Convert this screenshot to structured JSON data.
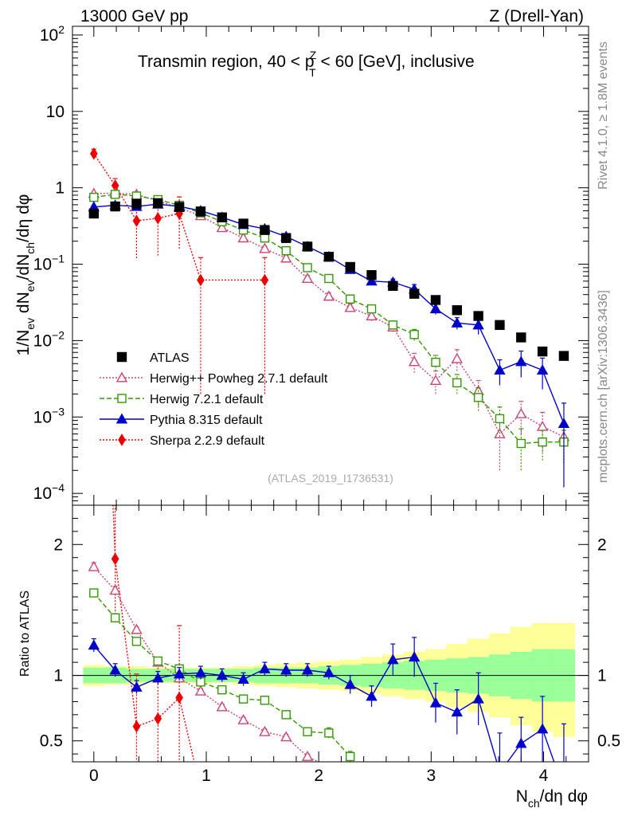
{
  "header": {
    "energy_label": "13000 GeV pp",
    "process_label": "Z (Drell-Yan)"
  },
  "side_text": {
    "rivet": "Rivet 4.1.0, ≥ 1.8M events",
    "site": "mcplots.cern.ch [arXiv:1306.3436]"
  },
  "colors": {
    "atlas": "#000000",
    "herwig_pp": "#cc4477",
    "herwig7": "#339900",
    "pythia": "#0000cc",
    "sherpa": "#ee0000",
    "band_inner": "#99ff99",
    "band_outer": "#ffff99"
  },
  "chart_data": [
    {
      "id": "main",
      "type": "scatter",
      "title_parts": {
        "lead": "Transmin region, 40 < p",
        "sup": "Z",
        "sub": "T",
        "tail": " < 60 [GeV], inclusive"
      },
      "ylabel": "1/N_ev dN_ev/dN_ch/dη dφ",
      "ylabel_parts": {
        "p1": "1/N",
        "s1": "ev",
        "p2": " dN",
        "s2": "ev",
        "p3": "/dN",
        "s3": "ch",
        "p4": "/dη dφ"
      },
      "yscale": "log",
      "ylim": [
        7e-05,
        130
      ],
      "xlim": [
        -0.19,
        4.4
      ],
      "yticks": [
        {
          "v": 0.0001,
          "base": "10",
          "exp": "−4"
        },
        {
          "v": 0.001,
          "base": "10",
          "exp": "−3"
        },
        {
          "v": 0.01,
          "base": "10",
          "exp": "−2"
        },
        {
          "v": 0.1,
          "base": "10",
          "exp": "−1"
        },
        {
          "v": 1,
          "base": "1",
          "exp": ""
        },
        {
          "v": 10,
          "base": "10",
          "exp": ""
        },
        {
          "v": 100,
          "base": "10",
          "exp": "2"
        }
      ],
      "watermark": "(ATLAS_2019_I1736531)",
      "legend": [
        {
          "key": "atlas",
          "label": "ATLAS"
        },
        {
          "key": "herwig_pp",
          "label": "Herwig++ Powheg 2.7.1 default"
        },
        {
          "key": "herwig7",
          "label": "Herwig 7.2.1 default"
        },
        {
          "key": "pythia",
          "label": "Pythia 8.315 default"
        },
        {
          "key": "sherpa",
          "label": "Sherpa 2.2.9 default"
        }
      ],
      "series": {
        "atlas": {
          "x": [
            0,
            0.19,
            0.38,
            0.57,
            0.76,
            0.95,
            1.14,
            1.33,
            1.52,
            1.71,
            1.9,
            2.09,
            2.28,
            2.47,
            2.66,
            2.85,
            3.04,
            3.23,
            3.42,
            3.61,
            3.8,
            3.99,
            4.18
          ],
          "y": [
            0.46,
            0.57,
            0.62,
            0.63,
            0.56,
            0.49,
            0.41,
            0.34,
            0.28,
            0.22,
            0.17,
            0.125,
            0.092,
            0.072,
            0.052,
            0.041,
            0.034,
            0.025,
            0.021,
            0.016,
            0.011,
            0.0072,
            0.0063
          ]
        },
        "herwig_pp": {
          "x": [
            0,
            0.19,
            0.38,
            0.57,
            0.76,
            0.95,
            1.14,
            1.33,
            1.52,
            1.71,
            1.9,
            2.09,
            2.28,
            2.47,
            2.66,
            2.85,
            3.04,
            3.23,
            3.42,
            3.61,
            3.8,
            3.99,
            4.18
          ],
          "y": [
            0.84,
            0.85,
            0.82,
            0.67,
            0.55,
            0.43,
            0.3,
            0.22,
            0.16,
            0.12,
            0.065,
            0.038,
            0.027,
            0.021,
            0.015,
            0.0053,
            0.003,
            0.0058,
            0.0022,
            0.0006,
            0.0011,
            0.00075,
            0.00055
          ],
          "err": [
            0.04,
            0.05,
            0.04,
            0.03,
            0.03,
            0.02,
            0.02,
            0.015,
            0.012,
            0.01,
            0.006,
            0.004,
            0.003,
            0.003,
            0.002,
            0.0015,
            0.001,
            0.0018,
            0.0008,
            0.0004,
            0.0005,
            0.0004,
            0.0003
          ]
        },
        "herwig7": {
          "x": [
            0,
            0.19,
            0.38,
            0.57,
            0.76,
            0.95,
            1.14,
            1.33,
            1.52,
            1.71,
            1.9,
            2.09,
            2.28,
            2.47,
            2.66,
            2.85,
            3.04,
            3.23,
            3.42,
            3.61,
            3.8,
            3.99,
            4.18
          ],
          "y": [
            0.75,
            0.82,
            0.78,
            0.7,
            0.59,
            0.47,
            0.36,
            0.28,
            0.22,
            0.15,
            0.09,
            0.065,
            0.035,
            0.026,
            0.016,
            0.012,
            0.0052,
            0.0028,
            0.0018,
            0.00095,
            0.00045,
            0.00047,
            0.00047
          ],
          "err": [
            0.03,
            0.04,
            0.03,
            0.03,
            0.02,
            0.02,
            0.015,
            0.012,
            0.01,
            0.008,
            0.006,
            0.004,
            0.003,
            0.003,
            0.002,
            0.002,
            0.0012,
            0.0008,
            0.0006,
            0.0004,
            0.00025,
            0.0002,
            0.0002
          ]
        },
        "pythia": {
          "x": [
            0,
            0.19,
            0.38,
            0.57,
            0.76,
            0.95,
            1.14,
            1.33,
            1.52,
            1.71,
            1.9,
            2.09,
            2.28,
            2.47,
            2.66,
            2.85,
            3.04,
            3.23,
            3.42,
            3.61,
            3.8,
            3.99,
            4.18
          ],
          "y": [
            0.56,
            0.59,
            0.57,
            0.61,
            0.57,
            0.5,
            0.41,
            0.33,
            0.29,
            0.23,
            0.17,
            0.125,
            0.085,
            0.06,
            0.058,
            0.047,
            0.026,
            0.017,
            0.016,
            0.0041,
            0.0053,
            0.0041,
            0.00082
          ],
          "err": [
            0.03,
            0.03,
            0.03,
            0.03,
            0.03,
            0.02,
            0.02,
            0.015,
            0.012,
            0.01,
            0.008,
            0.006,
            0.005,
            0.005,
            0.006,
            0.007,
            0.004,
            0.003,
            0.004,
            0.0015,
            0.002,
            0.0018,
            0.0007
          ]
        },
        "sherpa": {
          "x": [
            0,
            0.19,
            0.38,
            0.57,
            0.76,
            0.95,
            1.52
          ],
          "y": [
            2.8,
            1.07,
            0.37,
            0.4,
            0.46,
            0.062,
            0.062
          ],
          "err": [
            0.4,
            0.25,
            0.25,
            0.27,
            0.3,
            0.06,
            0.06
          ]
        }
      }
    },
    {
      "id": "ratio",
      "type": "scatter",
      "ylabel": "Ratio to ATLAS",
      "ylim": [
        0.34,
        2.3
      ],
      "xlim": [
        -0.19,
        4.4
      ],
      "xlabel": "N_ch/dη dφ",
      "xlabel_parts": {
        "p1": "N",
        "s1": "ch",
        "p2": "/dη dφ"
      },
      "xticks": [
        0,
        1,
        2,
        3,
        4
      ],
      "xtick_labels": [
        "0",
        "1",
        "2",
        "3",
        "4"
      ],
      "yticks": [
        0.5,
        1,
        2
      ],
      "ytick_labels": [
        "0.5",
        "1",
        "2"
      ],
      "bands": {
        "edges": [
          -0.095,
          0.095,
          0.285,
          0.475,
          0.665,
          0.855,
          1.045,
          1.235,
          1.425,
          1.615,
          1.805,
          1.995,
          2.185,
          2.375,
          2.565,
          2.755,
          2.945,
          3.135,
          3.325,
          3.515,
          3.705,
          3.895,
          4.085,
          4.275
        ],
        "inner_lo": [
          0.94,
          0.94,
          0.95,
          0.95,
          0.95,
          0.95,
          0.95,
          0.95,
          0.94,
          0.94,
          0.94,
          0.93,
          0.92,
          0.91,
          0.9,
          0.89,
          0.88,
          0.87,
          0.86,
          0.84,
          0.82,
          0.8,
          0.8
        ],
        "inner_hi": [
          1.06,
          1.06,
          1.05,
          1.05,
          1.05,
          1.05,
          1.05,
          1.05,
          1.06,
          1.06,
          1.06,
          1.07,
          1.08,
          1.09,
          1.1,
          1.11,
          1.12,
          1.13,
          1.14,
          1.16,
          1.18,
          1.2,
          1.2
        ],
        "outer_lo": [
          0.92,
          0.93,
          0.93,
          0.94,
          0.94,
          0.94,
          0.94,
          0.93,
          0.92,
          0.91,
          0.9,
          0.89,
          0.88,
          0.86,
          0.84,
          0.82,
          0.8,
          0.76,
          0.72,
          0.68,
          0.62,
          0.57,
          0.53
        ],
        "outer_hi": [
          1.08,
          1.07,
          1.07,
          1.06,
          1.06,
          1.06,
          1.06,
          1.07,
          1.08,
          1.09,
          1.1,
          1.11,
          1.12,
          1.14,
          1.16,
          1.18,
          1.2,
          1.24,
          1.28,
          1.32,
          1.37,
          1.4,
          1.4
        ]
      },
      "series": {
        "herwig_pp": {
          "x": [
            0,
            0.19,
            0.38,
            0.57,
            0.76,
            0.95,
            1.14,
            1.33,
            1.52,
            1.71,
            1.9,
            2.09
          ],
          "y": [
            1.83,
            1.65,
            1.35,
            1.1,
            0.98,
            0.88,
            0.76,
            0.66,
            0.57,
            0.53,
            0.38,
            0.3
          ],
          "err": [
            0.03,
            0.03,
            0.02,
            0.02,
            0.02,
            0.02,
            0.02,
            0.02,
            0.02,
            0.02,
            0.02,
            0.02
          ]
        },
        "herwig7": {
          "x": [
            0,
            0.19,
            0.38,
            0.57,
            0.76,
            0.95,
            1.14,
            1.33,
            1.52,
            1.71,
            1.9,
            2.09,
            2.28
          ],
          "y": [
            1.63,
            1.44,
            1.26,
            1.11,
            1.05,
            0.95,
            0.89,
            0.82,
            0.81,
            0.7,
            0.57,
            0.56,
            0.38
          ],
          "err": [
            0.03,
            0.03,
            0.02,
            0.02,
            0.02,
            0.02,
            0.02,
            0.02,
            0.03,
            0.03,
            0.03,
            0.04,
            0.04
          ]
        },
        "pythia": {
          "x": [
            0,
            0.19,
            0.38,
            0.57,
            0.76,
            0.95,
            1.14,
            1.33,
            1.52,
            1.71,
            1.9,
            2.09,
            2.28,
            2.47,
            2.66,
            2.85,
            3.04,
            3.23,
            3.42,
            3.61,
            3.8,
            3.99,
            4.18
          ],
          "y": [
            1.23,
            1.04,
            0.91,
            0.98,
            1.01,
            1.02,
            1.0,
            0.97,
            1.05,
            1.04,
            1.04,
            1.02,
            0.93,
            0.84,
            1.12,
            1.14,
            0.79,
            0.72,
            0.82,
            0.26,
            0.48,
            0.59,
            0.13
          ],
          "err": [
            0.05,
            0.05,
            0.05,
            0.05,
            0.05,
            0.05,
            0.05,
            0.05,
            0.05,
            0.05,
            0.05,
            0.05,
            0.07,
            0.08,
            0.12,
            0.15,
            0.15,
            0.17,
            0.2,
            0.3,
            0.2,
            0.25,
            0.5
          ]
        },
        "sherpa": {
          "x": [
            0,
            0.19,
            0.38,
            0.57,
            0.76,
            0.95
          ],
          "y": [
            6.0,
            1.89,
            0.61,
            0.67,
            0.83,
            0.13
          ],
          "err": [
            0.9,
            0.45,
            0.4,
            0.45,
            0.55,
            0.12
          ]
        }
      }
    }
  ]
}
